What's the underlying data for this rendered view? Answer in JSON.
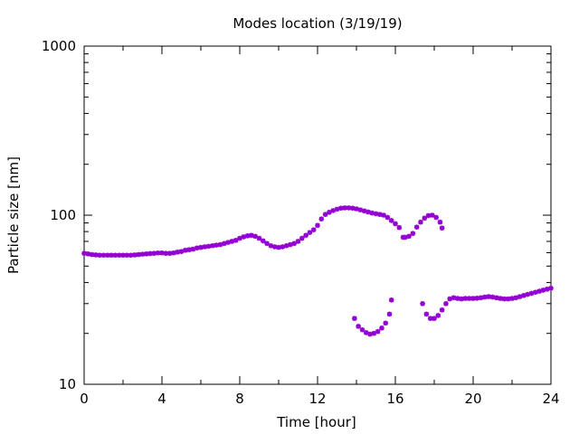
{
  "chart_data": {
    "type": "scatter",
    "title": "Modes location (3/19/19)",
    "xlabel": "Time [hour]",
    "ylabel": "Particle size [nm]",
    "xlim": [
      0,
      24
    ],
    "ylim": [
      10,
      1000
    ],
    "yscale": "log",
    "xticks": [
      "0",
      "4",
      "8",
      "12",
      "16",
      "20",
      "24"
    ],
    "yticks": [
      "10",
      "100",
      "1000"
    ],
    "grid": false,
    "legend": "none",
    "marker_color": "#9400d3",
    "series": [
      {
        "x": [
          0,
          0.2,
          0.4,
          0.6,
          0.8,
          1,
          1.2,
          1.4,
          1.6,
          1.8,
          2,
          2.2,
          2.4,
          2.6,
          2.8,
          3,
          3.2,
          3.4,
          3.6,
          3.8,
          4,
          4.2,
          4.4,
          4.6,
          4.8,
          5,
          5.2,
          5.4,
          5.6,
          5.8,
          6,
          6.2,
          6.4,
          6.6,
          6.8,
          7,
          7.2,
          7.4,
          7.6,
          7.8,
          8,
          8.2,
          8.4,
          8.6,
          8.8,
          9,
          9.2,
          9.4,
          9.6,
          9.8,
          10,
          10.2,
          10.4,
          10.6,
          10.8,
          11,
          11.2,
          11.4,
          11.6,
          11.8,
          12,
          12.2,
          12.4,
          12.6,
          12.8,
          13,
          13.2,
          13.4,
          13.6,
          13.8,
          14,
          14.2,
          14.4,
          14.6,
          14.8,
          15,
          15.2,
          15.4,
          15.6,
          15.8,
          16,
          16.2,
          16.4,
          16.5,
          16.7,
          16.9,
          17.1,
          17.3,
          17.5,
          17.7,
          17.9,
          18.1,
          18.3,
          18.4
        ],
        "y": [
          59.5,
          59,
          58.5,
          58.2,
          58,
          58,
          58,
          58,
          58,
          58,
          58,
          58,
          58,
          58.2,
          58.5,
          58.8,
          59,
          59.3,
          59.5,
          59.8,
          59.8,
          59.5,
          59.5,
          59.8,
          60.5,
          61,
          62,
          62.5,
          63,
          64,
          64.5,
          65,
          65.5,
          66,
          66.5,
          67,
          68,
          69,
          70,
          71,
          73,
          74.5,
          75.5,
          76,
          75,
          73,
          70.5,
          68,
          66,
          65,
          64.5,
          65,
          66,
          67,
          68,
          70,
          73,
          76,
          79,
          82,
          87,
          95,
          101,
          104,
          106.5,
          108.5,
          110,
          110.5,
          110.5,
          110,
          109,
          107.5,
          106,
          104.5,
          103,
          102,
          101,
          100,
          97,
          93,
          89,
          84.5,
          74,
          74,
          75,
          78,
          85,
          91,
          96,
          99.5,
          100,
          97,
          91,
          84
        ]
      },
      {
        "x": [
          13.9,
          14.1,
          14.3,
          14.5,
          14.7,
          14.9,
          15.1,
          15.3,
          15.5,
          15.7,
          15.8
        ],
        "y": [
          24.5,
          22,
          21,
          20.2,
          19.8,
          20,
          20.5,
          21.5,
          23,
          26,
          31.5
        ]
      },
      {
        "x": [
          17.4,
          17.6,
          17.8,
          18,
          18.2,
          18.4,
          18.6,
          18.8,
          19,
          19.2,
          19.4,
          19.6,
          19.8,
          20,
          20.2,
          20.4,
          20.6,
          20.8,
          21,
          21.2,
          21.4,
          21.6,
          21.8,
          22,
          22.2,
          22.4,
          22.6,
          22.8,
          23,
          23.2,
          23.4,
          23.6,
          23.8,
          24
        ],
        "y": [
          30,
          26,
          24.5,
          24.5,
          25.5,
          27.5,
          30,
          32,
          32.5,
          32.2,
          32,
          32.2,
          32.2,
          32.2,
          32.3,
          32.5,
          32.8,
          33,
          32.8,
          32.5,
          32.2,
          32,
          32,
          32.2,
          32.5,
          33,
          33.5,
          34,
          34.5,
          35,
          35.5,
          36,
          36.5,
          37
        ]
      }
    ]
  }
}
